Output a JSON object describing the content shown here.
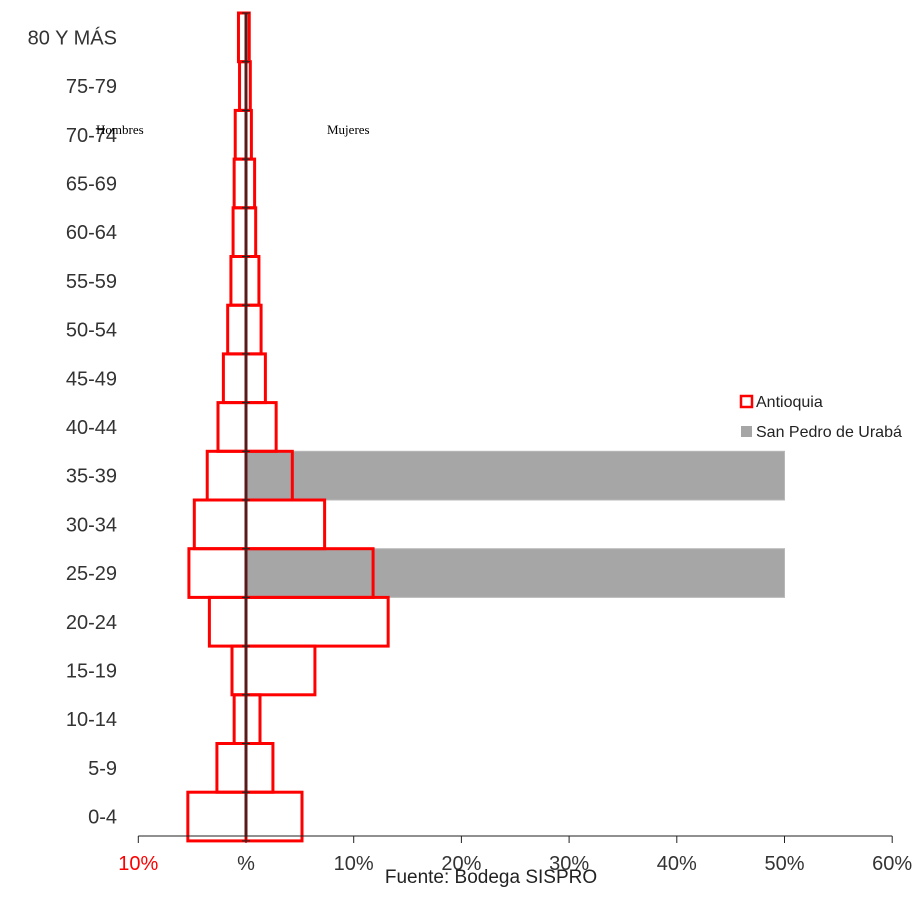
{
  "chart_data": {
    "type": "bar",
    "orientation": "horizontal",
    "subtype": "population-pyramid",
    "categories": [
      "80 Y MÁS",
      "75-79",
      "70-74",
      "65-69",
      "60-64",
      "55-59",
      "50-54",
      "45-49",
      "40-44",
      "35-39",
      "30-34",
      "25-29",
      "20-24",
      "15-19",
      "10-14",
      "5-9",
      "0-4"
    ],
    "sex_labels": {
      "left": "Hombres",
      "right": "Mujeres"
    },
    "x_ticks": [
      {
        "label": "10%",
        "value": -10,
        "color": "#ff0000"
      },
      {
        "label": "%",
        "value": 0,
        "color": "#333333"
      },
      {
        "label": "10%",
        "value": 10,
        "color": "#333333"
      },
      {
        "label": "20%",
        "value": 20,
        "color": "#333333"
      },
      {
        "label": "30%",
        "value": 30,
        "color": "#333333"
      },
      {
        "label": "40%",
        "value": 40,
        "color": "#333333"
      },
      {
        "label": "50%",
        "value": 50,
        "color": "#333333"
      },
      {
        "label": "60%",
        "value": 60,
        "color": "#333333"
      }
    ],
    "xlim": [
      -10,
      60
    ],
    "series": [
      {
        "name": "Antioquia",
        "style": "outline",
        "color": "#ff0000",
        "hombres": [
          -0.7,
          -0.6,
          -1.0,
          -1.1,
          -1.2,
          -1.4,
          -1.7,
          -2.1,
          -2.6,
          -3.6,
          -4.8,
          -5.3,
          -3.4,
          -1.3,
          -1.1,
          -2.7,
          -5.4
        ],
        "mujeres": [
          0.3,
          0.4,
          0.5,
          0.8,
          0.9,
          1.2,
          1.4,
          1.8,
          2.8,
          4.3,
          7.3,
          11.8,
          13.2,
          6.4,
          1.3,
          2.5,
          5.2
        ]
      },
      {
        "name": "San Pedro de Urabá",
        "style": "filled",
        "color": "#a6a6a6",
        "hombres": [
          0,
          0,
          0,
          0,
          0,
          0,
          0,
          0,
          0,
          0,
          0,
          0,
          0,
          0,
          0,
          0,
          0
        ],
        "mujeres": [
          0,
          0,
          0,
          0,
          0,
          0,
          0,
          0,
          0,
          50,
          0,
          50,
          0,
          0,
          0,
          0,
          0
        ]
      }
    ],
    "legend": {
      "placement": "right",
      "entries": [
        "Antioquia",
        "San Pedro de Urabá"
      ]
    },
    "grid": false
  },
  "source": "Fuente: Bodega SISPRO"
}
